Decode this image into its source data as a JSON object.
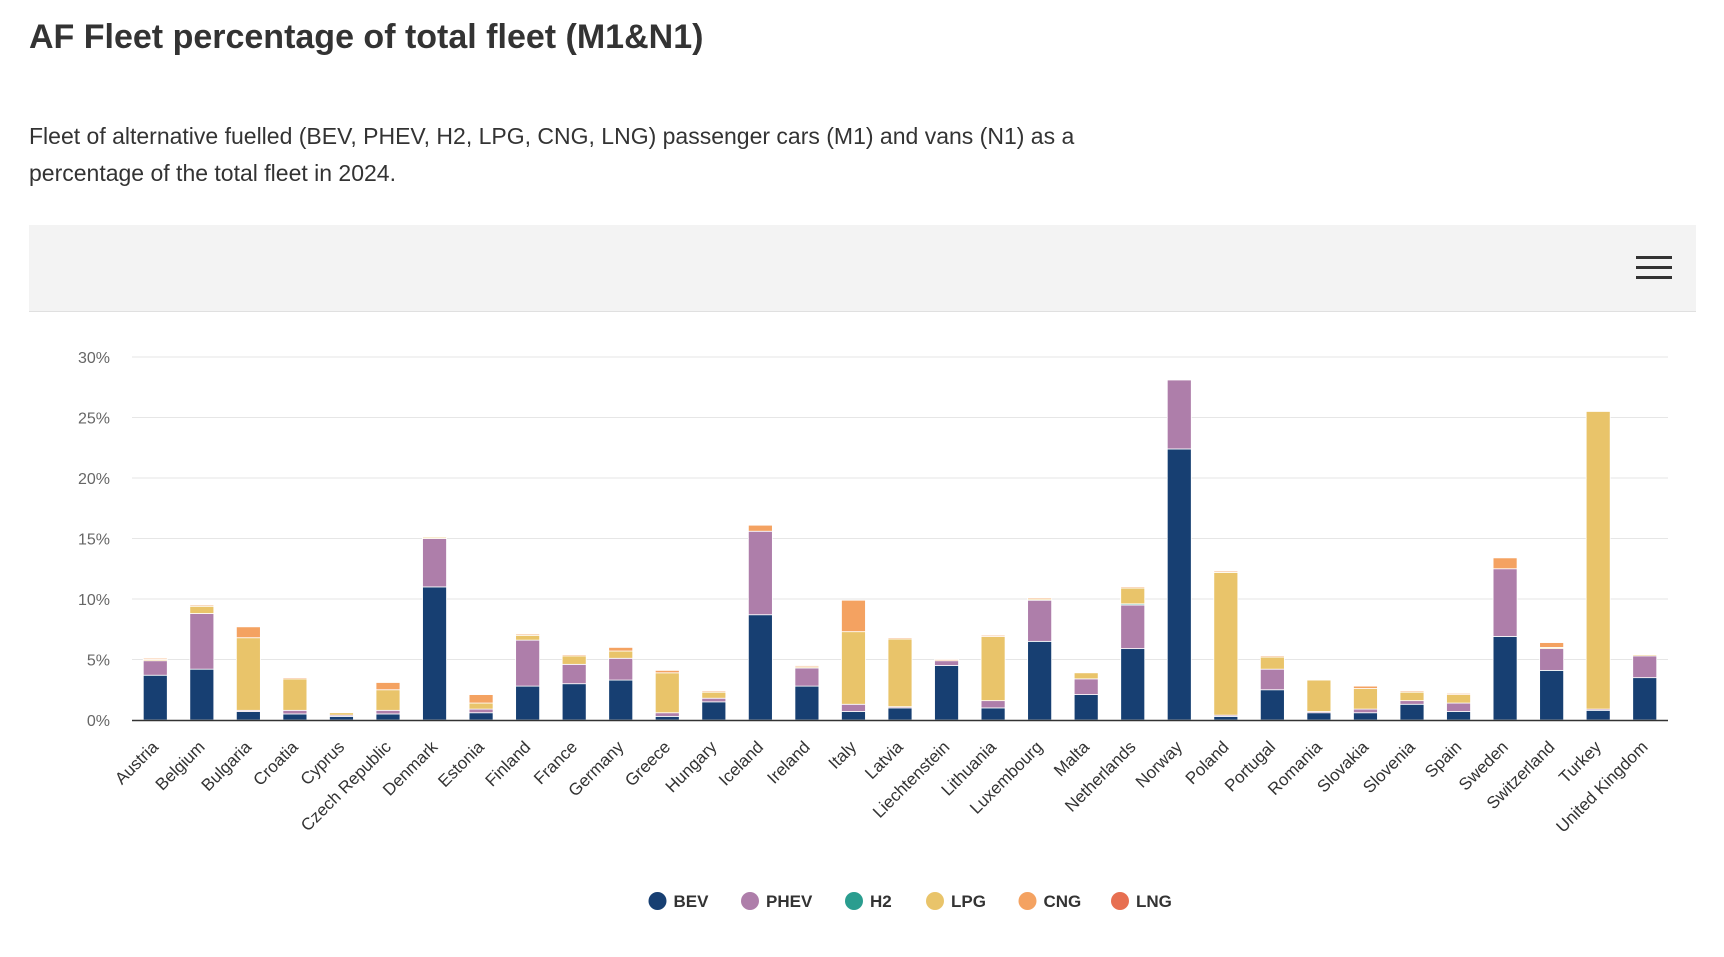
{
  "page": {
    "title": "AF Fleet percentage of total fleet (M1&N1)",
    "subtitle": "Fleet of alternative fuelled (BEV, PHEV, H2, LPG, CNG, LNG) passenger cars (M1) and vans (N1) as a percentage of the total fleet in 2024.",
    "menu_icon": "hamburger-menu-icon"
  },
  "chart_data": {
    "type": "bar",
    "stacked": true,
    "ylim": [
      0,
      30
    ],
    "yticks": [
      0,
      5,
      10,
      15,
      20,
      25,
      30
    ],
    "ytick_labels": [
      "0%",
      "5%",
      "10%",
      "15%",
      "20%",
      "25%",
      "30%"
    ],
    "grid": true,
    "legend_position": "bottom-center",
    "categories": [
      "Austria",
      "Belgium",
      "Bulgaria",
      "Croatia",
      "Cyprus",
      "Czech Republic",
      "Denmark",
      "Estonia",
      "Finland",
      "France",
      "Germany",
      "Greece",
      "Hungary",
      "Iceland",
      "Ireland",
      "Italy",
      "Latvia",
      "Liechtenstein",
      "Lithuania",
      "Luxembourg",
      "Malta",
      "Netherlands",
      "Norway",
      "Poland",
      "Portugal",
      "Romania",
      "Slovakia",
      "Slovenia",
      "Spain",
      "Sweden",
      "Switzerland",
      "Turkey",
      "United Kingdom"
    ],
    "series": [
      {
        "name": "BEV",
        "color": "#173f72",
        "values": [
          3.7,
          4.2,
          0.7,
          0.5,
          0.3,
          0.5,
          11.0,
          0.6,
          2.8,
          3.0,
          3.3,
          0.3,
          1.5,
          8.7,
          2.8,
          0.7,
          1.0,
          4.5,
          1.0,
          6.5,
          2.1,
          5.9,
          22.4,
          0.3,
          2.5,
          0.6,
          0.6,
          1.3,
          0.7,
          6.9,
          4.1,
          0.8,
          3.5
        ]
      },
      {
        "name": "PHEV",
        "color": "#ae7eaa",
        "values": [
          1.2,
          4.6,
          0.1,
          0.3,
          0.1,
          0.3,
          4.0,
          0.3,
          3.8,
          1.6,
          1.8,
          0.3,
          0.3,
          6.9,
          1.5,
          0.6,
          0.1,
          0.4,
          0.6,
          3.4,
          1.3,
          3.6,
          5.7,
          0.1,
          1.7,
          0.1,
          0.3,
          0.3,
          0.7,
          5.6,
          1.8,
          0.1,
          1.8
        ]
      },
      {
        "name": "H2",
        "color": "#2a9d8f",
        "values": [
          0,
          0,
          0,
          0,
          0,
          0,
          0,
          0,
          0,
          0,
          0,
          0,
          0,
          0,
          0,
          0,
          0,
          0,
          0,
          0,
          0,
          0.1,
          0,
          0,
          0,
          0,
          0,
          0,
          0,
          0,
          0,
          0,
          0
        ]
      },
      {
        "name": "LPG",
        "color": "#e9c46a",
        "values": [
          0.1,
          0.6,
          6.0,
          2.6,
          0.2,
          1.7,
          0.1,
          0.5,
          0.4,
          0.7,
          0.6,
          3.3,
          0.5,
          0,
          0.1,
          6.0,
          5.6,
          0,
          5.3,
          0.1,
          0.5,
          1.3,
          0,
          11.8,
          1.0,
          2.6,
          1.7,
          0.7,
          0.7,
          0,
          0.1,
          24.6,
          0.1
        ]
      },
      {
        "name": "CNG",
        "color": "#f4a261",
        "values": [
          0.1,
          0.1,
          0.9,
          0.1,
          0,
          0.6,
          0,
          0.7,
          0.1,
          0.1,
          0.3,
          0.2,
          0.1,
          0.5,
          0.1,
          2.6,
          0.1,
          0.1,
          0.1,
          0.1,
          0,
          0.1,
          0,
          0.1,
          0.1,
          0,
          0.2,
          0.1,
          0.1,
          0.9,
          0.4,
          0,
          0
        ]
      },
      {
        "name": "LNG",
        "color": "#e76f51",
        "values": [
          0,
          0,
          0,
          0,
          0,
          0,
          0,
          0,
          0,
          0,
          0,
          0,
          0,
          0,
          0,
          0,
          0,
          0,
          0,
          0,
          0,
          0,
          0,
          0,
          0,
          0,
          0,
          0,
          0,
          0,
          0,
          0,
          0
        ]
      }
    ]
  }
}
